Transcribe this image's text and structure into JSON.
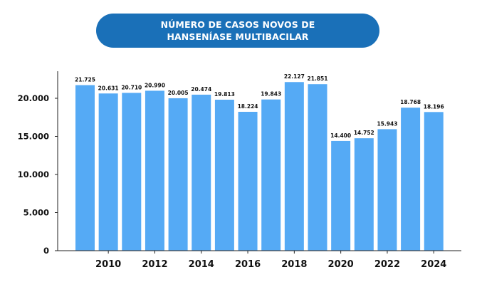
{
  "chart_data": {
    "type": "bar",
    "title_lines": [
      "NÚMERO DE CASOS NOVOS DE",
      "HANSENÍASE MULTIBACILAR"
    ],
    "categories": [
      "2009",
      "2010",
      "2011",
      "2012",
      "2013",
      "2014",
      "2015",
      "2016",
      "2017",
      "2018",
      "2019",
      "2020",
      "2021",
      "2022",
      "2023",
      "2024"
    ],
    "values": [
      21725,
      20631,
      20710,
      20990,
      20005,
      20474,
      19813,
      18224,
      19843,
      22127,
      21851,
      14400,
      14752,
      15943,
      18768,
      18196
    ],
    "value_labels": [
      "21.725",
      "20.631",
      "20.710",
      "20.990",
      "20.005",
      "20.474",
      "19.813",
      "18.224",
      "19.843",
      "22.127",
      "21.851",
      "14.400",
      "14.752",
      "15.943",
      "18.768",
      "18.196"
    ],
    "x_tick_labels": [
      "2010",
      "2012",
      "2014",
      "2016",
      "2018",
      "2020",
      "2022",
      "2024"
    ],
    "y_ticks": [
      0,
      5000,
      10000,
      15000,
      20000
    ],
    "y_tick_labels": [
      "0",
      "5.000",
      "10.000",
      "15.000",
      "20.000"
    ],
    "ylim": [
      0,
      24000
    ],
    "xlabel": "",
    "ylabel": "",
    "bar_color": "#55aaf5",
    "title_bg_color": "#1a70b8",
    "axis_color": "#222222"
  }
}
